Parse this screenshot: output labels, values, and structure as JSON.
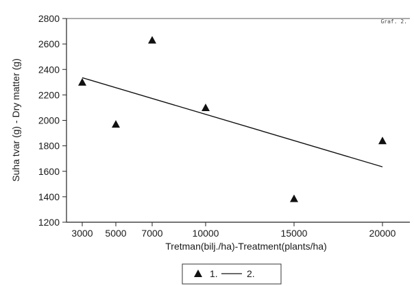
{
  "chart_data": {
    "type": "scatter",
    "annotation": "Graf. 2.",
    "xlabel": "Tretman(bilj./ha)-Treatment(plants/ha)",
    "ylabel": "Suha tvar (g) - Dry matter (g)",
    "x_ticks": [
      3000,
      5000,
      7000,
      10000,
      15000,
      20000
    ],
    "y_ticks": [
      1200,
      1400,
      1600,
      1800,
      2000,
      2200,
      2400,
      2600,
      2800
    ],
    "ylim": [
      1200,
      2800
    ],
    "grid": false,
    "legend_position": "bottom-center",
    "series": [
      {
        "name": "1.",
        "marker": "triangle",
        "points": [
          {
            "x": 3000,
            "y": 2300
          },
          {
            "x": 5000,
            "y": 1970
          },
          {
            "x": 7000,
            "y": 2630
          },
          {
            "x": 10000,
            "y": 2100
          },
          {
            "x": 15000,
            "y": 1385
          },
          {
            "x": 20000,
            "y": 1840
          }
        ]
      },
      {
        "name": "2.",
        "marker": "line",
        "points": [
          {
            "x": 3000,
            "y": 2335
          },
          {
            "x": 20000,
            "y": 1635
          }
        ]
      }
    ],
    "colors": {
      "marker": "#111111",
      "line": "#111111",
      "axis": "#222222"
    }
  }
}
